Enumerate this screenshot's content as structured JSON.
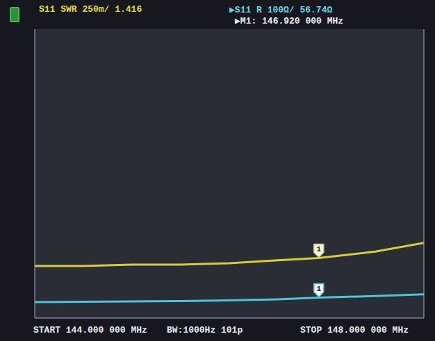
{
  "chart_data": {
    "type": "line",
    "annotations": [
      {
        "text": "S11 SWR 250m/ 1.416",
        "color": "#e2d84a"
      },
      {
        "text": "▶S11 R 100Ω/ 56.74Ω",
        "color": "#6fd2e8"
      },
      {
        "text": "▶M1: 146.920 000 MHz",
        "color": "#f0f0f0"
      },
      {
        "text": "START 144.000 000 MHz",
        "color": "#e8e8f0"
      },
      {
        "text": "BW:1000Hz 101p",
        "color": "#e8e8f0"
      },
      {
        "text": "STOP 148.000 000 MHz",
        "color": "#e8e8f0"
      }
    ],
    "x": [
      144,
      144.5,
      145,
      145.5,
      146,
      146.5,
      146.92,
      147.5,
      148
    ],
    "series": [
      {
        "name": "S11 SWR",
        "color": "#d8cc3c",
        "values": [
          1.36,
          1.36,
          1.37,
          1.37,
          1.38,
          1.4,
          1.416,
          1.46,
          1.52
        ]
      },
      {
        "name": "S11 R",
        "color": "#4cc4dc",
        "axis": "y2",
        "values": [
          44,
          45,
          46,
          47,
          49,
          52,
          56.74,
          61,
          66
        ]
      }
    ],
    "markers": [
      {
        "label": "1",
        "x": 146.92
      }
    ],
    "xlim": [
      144,
      148
    ],
    "xticks": [
      144,
      145,
      146,
      147,
      148
    ],
    "ylim": [
      1,
      3
    ],
    "yticks": [
      1,
      1.25,
      1.5,
      1.75,
      2,
      2.25,
      2.5,
      2.75,
      3
    ],
    "y2lim": [
      0,
      800
    ],
    "y2ticks": [
      0,
      100,
      200,
      300,
      400,
      500,
      600,
      700,
      800
    ],
    "grid": true,
    "tick_labels": false
  }
}
